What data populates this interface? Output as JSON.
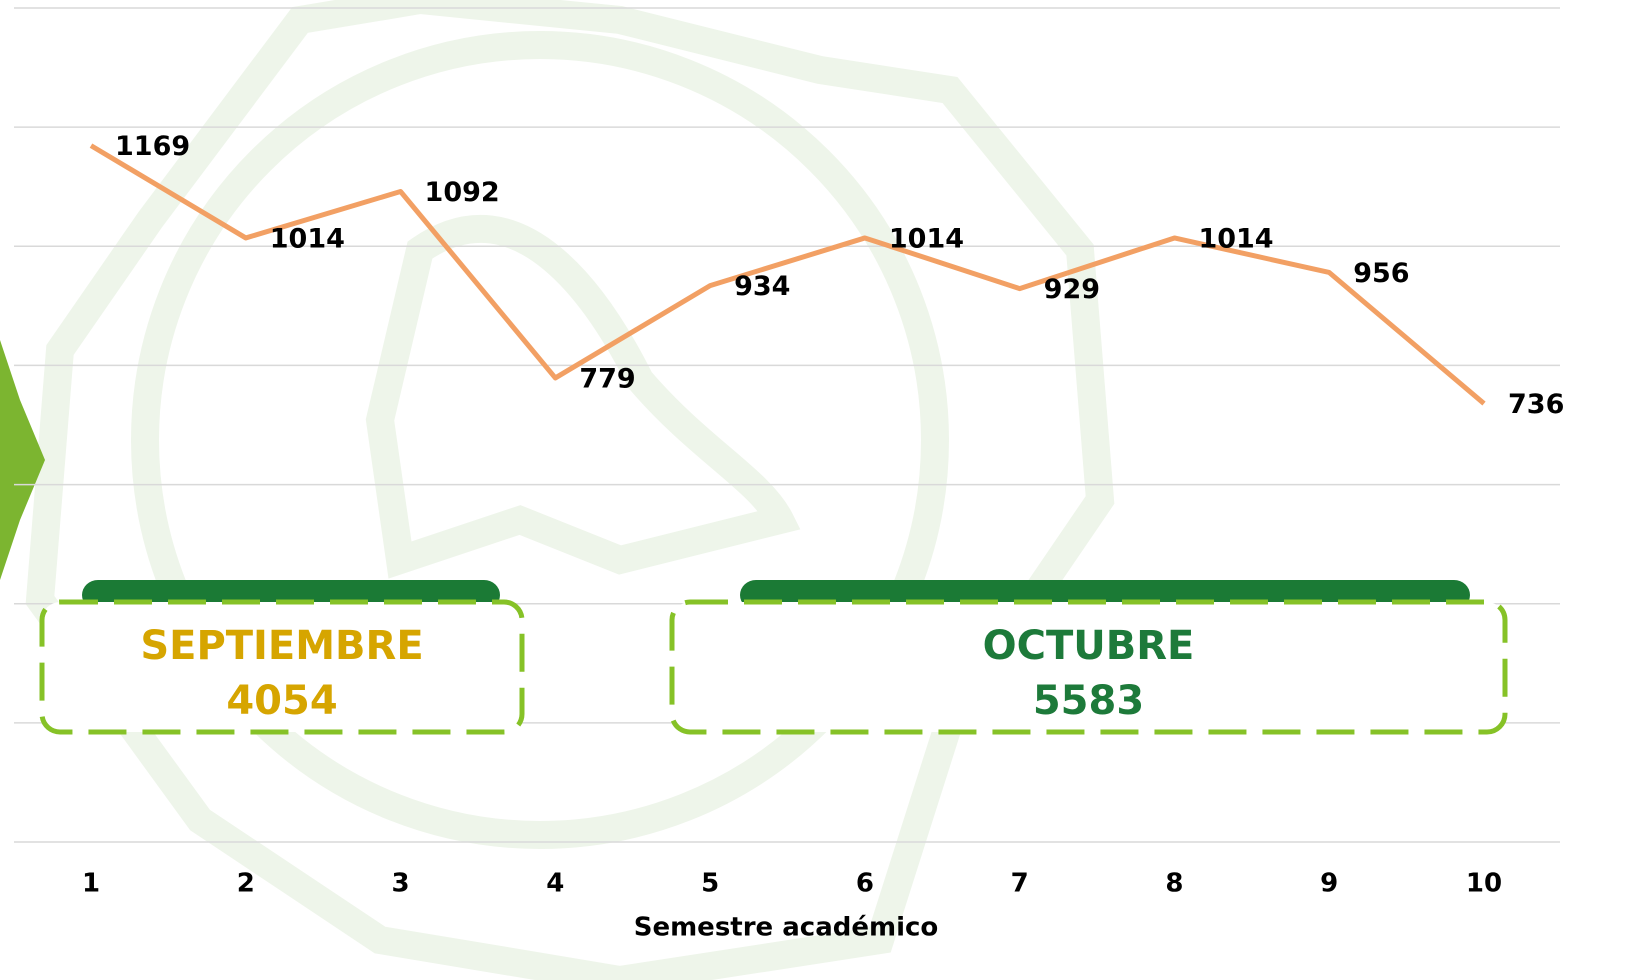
{
  "chart_data": {
    "type": "line",
    "x_label": "Semestre académico",
    "categories": [
      "1",
      "2",
      "3",
      "4",
      "5",
      "6",
      "7",
      "8",
      "9",
      "10"
    ],
    "values": [
      1169,
      1014,
      1092,
      779,
      934,
      1014,
      929,
      1014,
      956,
      736
    ],
    "color": "#f2a064",
    "ylim": [
      0,
      1400
    ],
    "yticks": [
      0,
      200,
      400,
      600,
      800,
      1000,
      1200,
      1400
    ],
    "grid": true,
    "annotations": [
      {
        "label": "SEPTIEMBRE",
        "value": 4054,
        "color": "#d6a500"
      },
      {
        "label": "OCTUBRE",
        "value": 5583,
        "color": "#1d7a3a"
      }
    ]
  }
}
